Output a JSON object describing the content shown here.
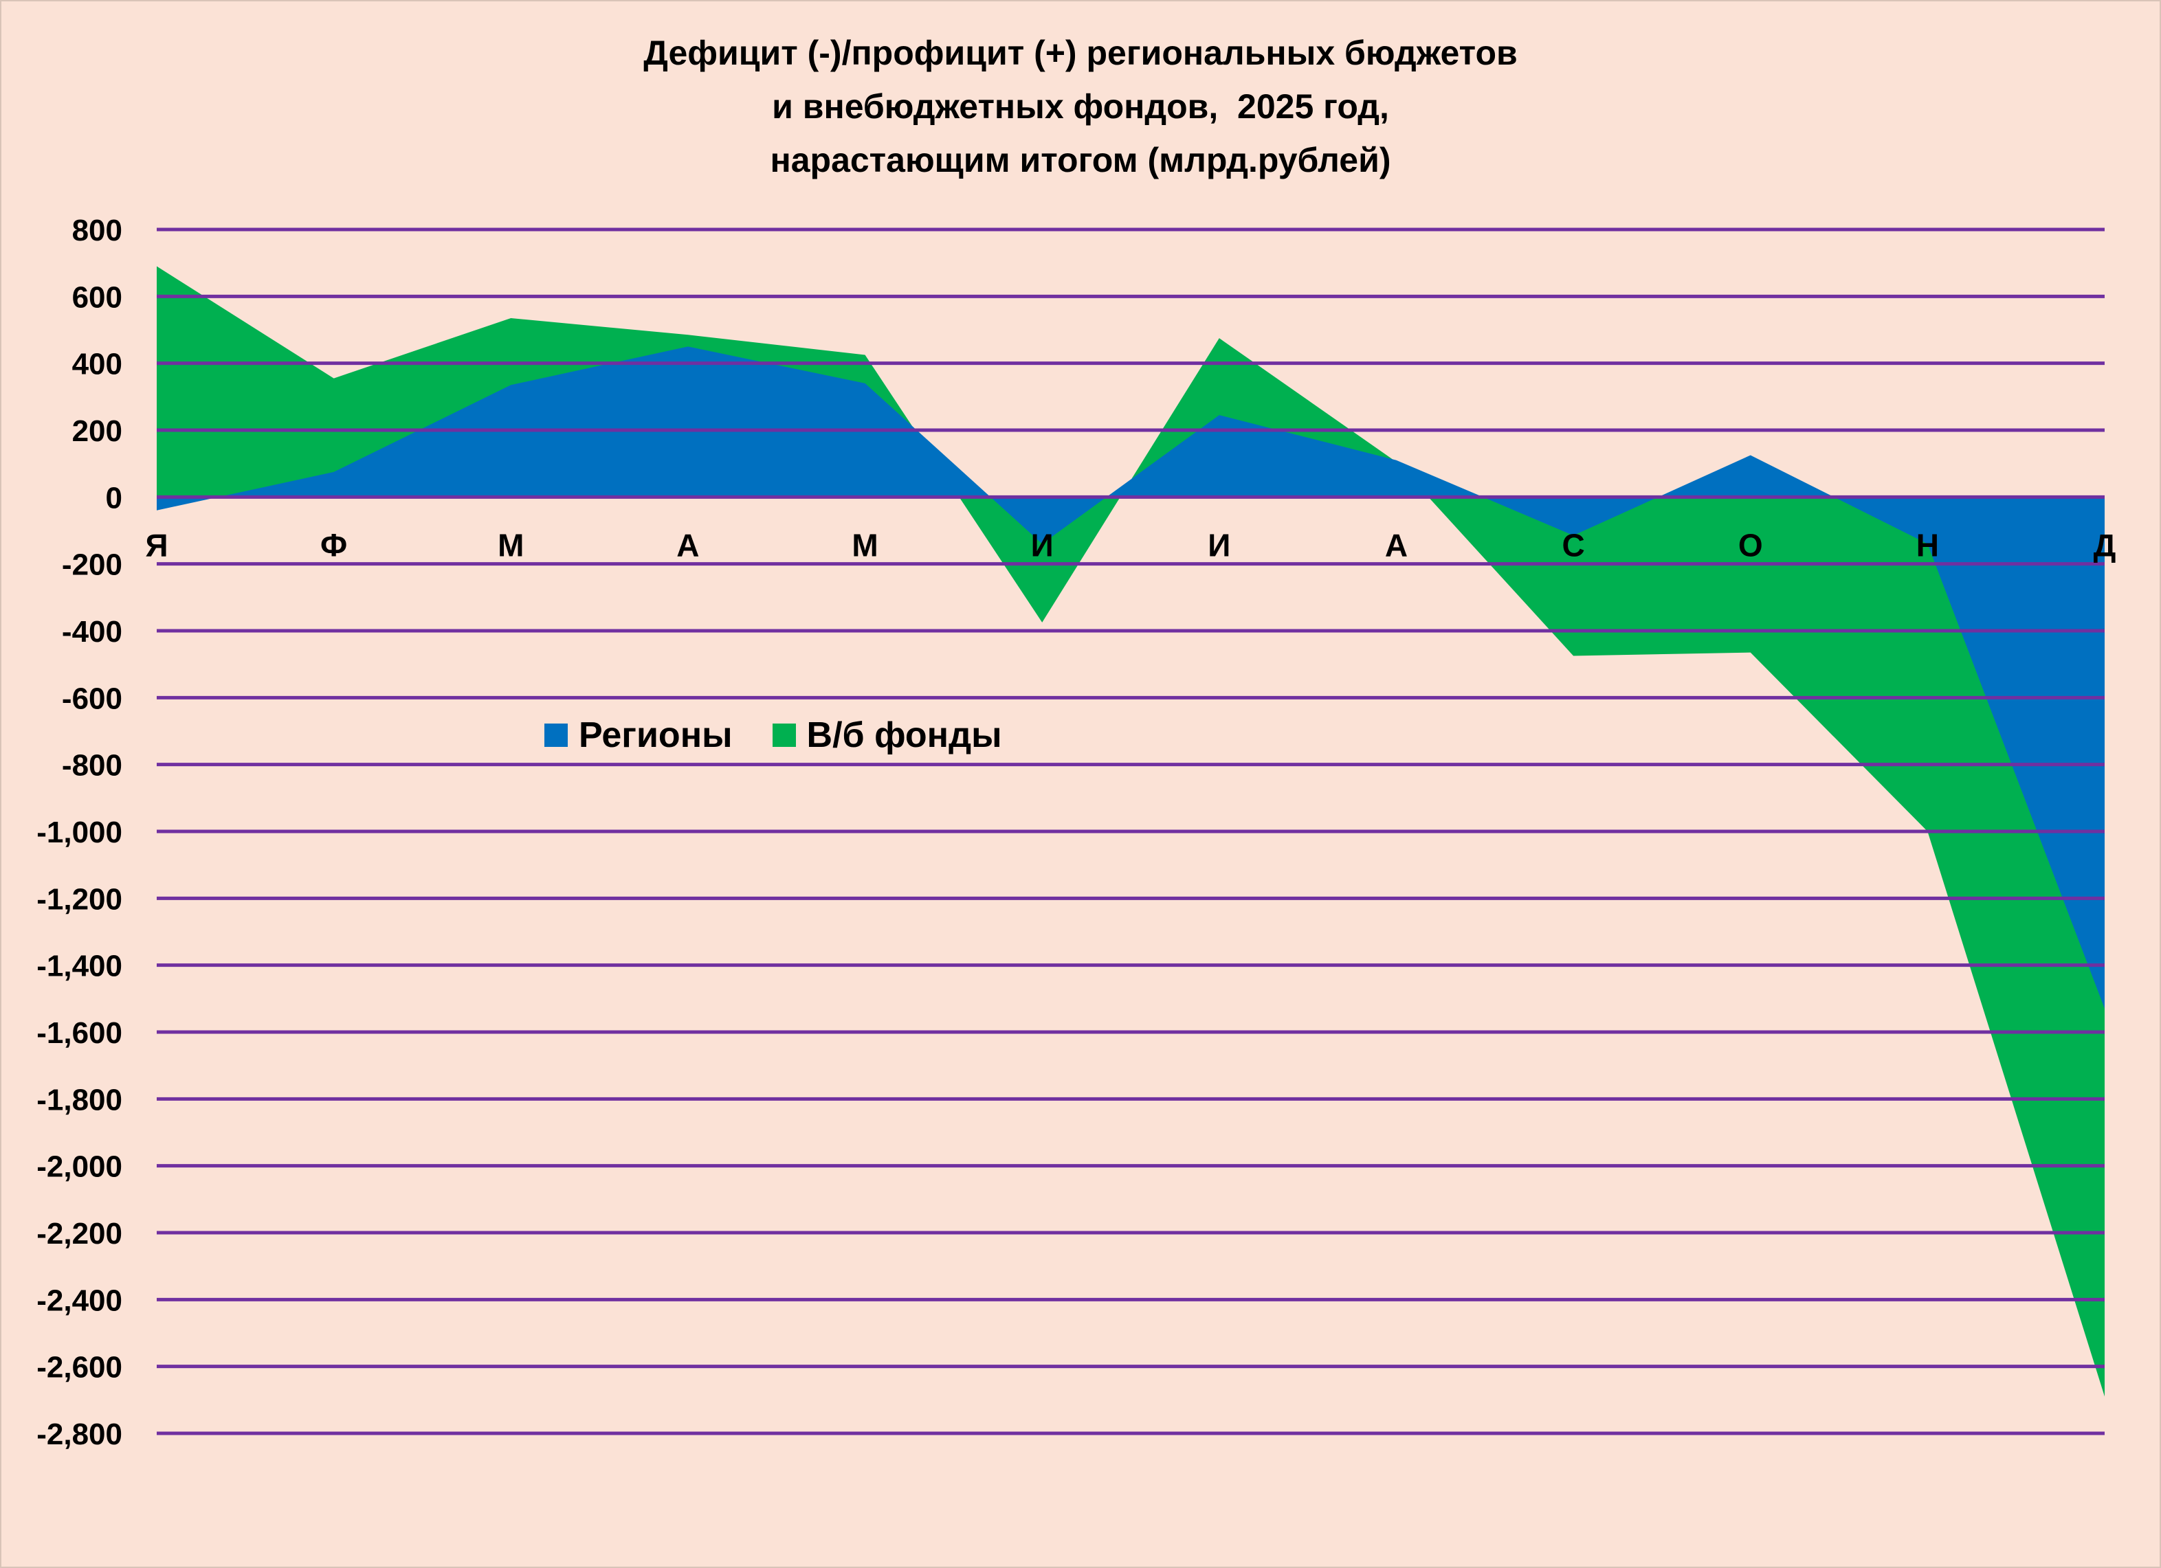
{
  "chart_data": {
    "type": "area",
    "title_lines": [
      "Дефицит (-)/профицит (+) региональных бюджетов",
      "и внебюджетных фондов,  2025 год,",
      "нарастающим итогом (млрд.рублей)"
    ],
    "categories": [
      "Я",
      "Ф",
      "М",
      "А",
      "М",
      "И",
      "И",
      "А",
      "С",
      "О",
      "Н",
      "Д"
    ],
    "series": [
      {
        "name": "Регионы",
        "color": "#0070c0",
        "values": [
          -40,
          75,
          335,
          450,
          340,
          -140,
          245,
          110,
          -115,
          125,
          -140,
          -1530
        ]
      },
      {
        "name": "В/б фонды",
        "color": "#00b050",
        "values": [
          690,
          355,
          535,
          485,
          425,
          -375,
          475,
          105,
          -475,
          -465,
          -1000,
          -2690
        ]
      }
    ],
    "ylim": [
      -2800,
      800
    ],
    "yticks": [
      "800",
      "600",
      "400",
      "200",
      "0",
      "-200",
      "-400",
      "-600",
      "-800",
      "-1,000",
      "-1,200",
      "-1,400",
      "-1,600",
      "-1,800",
      "-2,000",
      "-2,200",
      "-2,400",
      "-2,600",
      "-2,800"
    ],
    "ytick_values": [
      800,
      600,
      400,
      200,
      0,
      -200,
      -400,
      -600,
      -800,
      -1000,
      -1200,
      -1400,
      -1600,
      -1800,
      -2000,
      -2200,
      -2400,
      -2600,
      -2800
    ],
    "grid": true,
    "grid_color": "#7030a0",
    "legend_position": "middle-left",
    "background_color": "#fbe2d6"
  }
}
